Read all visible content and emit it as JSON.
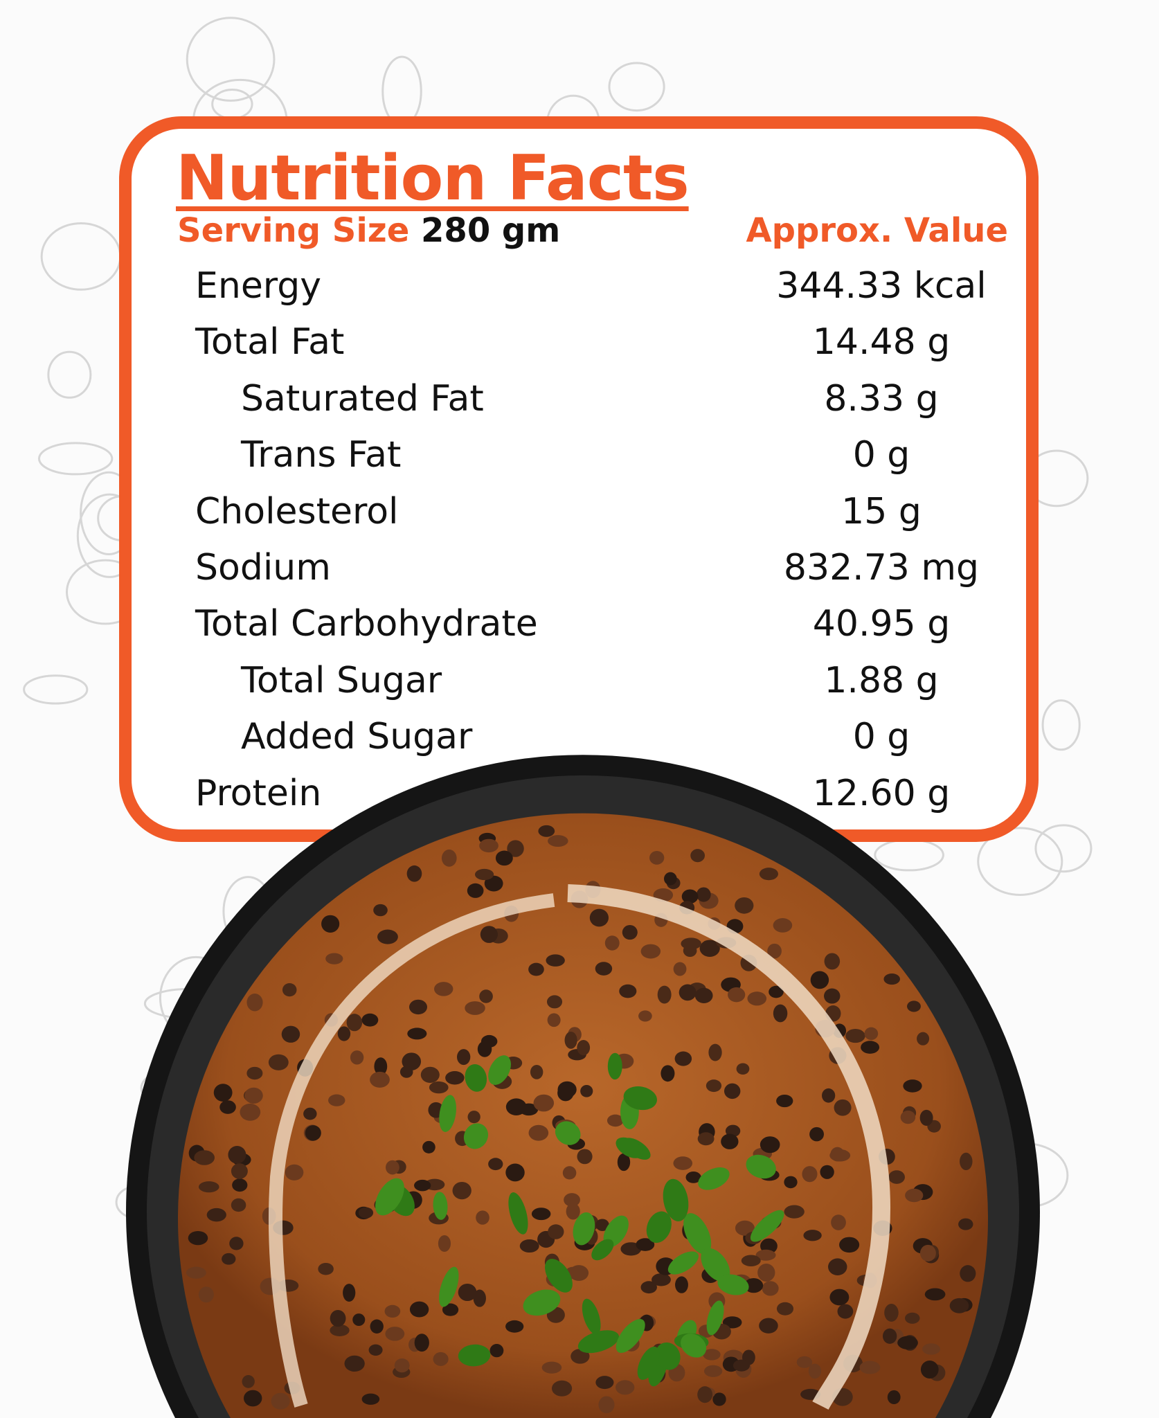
{
  "title": "Nutrition Facts",
  "serving": {
    "label": "Serving Size",
    "value": "280 gm"
  },
  "value_header": "Approx. Value",
  "nutrients": [
    {
      "name": "Energy",
      "value": "344.33 kcal",
      "indent": false
    },
    {
      "name": "Total Fat",
      "value": "14.48 g",
      "indent": false
    },
    {
      "name": "Saturated Fat",
      "value": "8.33 g",
      "indent": true
    },
    {
      "name": "Trans Fat",
      "value": "0 g",
      "indent": true
    },
    {
      "name": "Cholesterol",
      "value": "15 g",
      "indent": false
    },
    {
      "name": "Sodium",
      "value": "832.73 mg",
      "indent": false
    },
    {
      "name": "Total Carbohydrate",
      "value": "40.95 g",
      "indent": false
    },
    {
      "name": "Total Sugar",
      "value": "1.88 g",
      "indent": true
    },
    {
      "name": "Added Sugar",
      "value": "0 g",
      "indent": true
    },
    {
      "name": "Protein",
      "value": "12.60 g",
      "indent": false
    }
  ],
  "colors": {
    "accent": "#f05a28",
    "text": "#111111",
    "bowl_rim": "#1c1c1c",
    "gravy": "#a8591f"
  },
  "image": {
    "subject": "dal makhani bowl"
  }
}
